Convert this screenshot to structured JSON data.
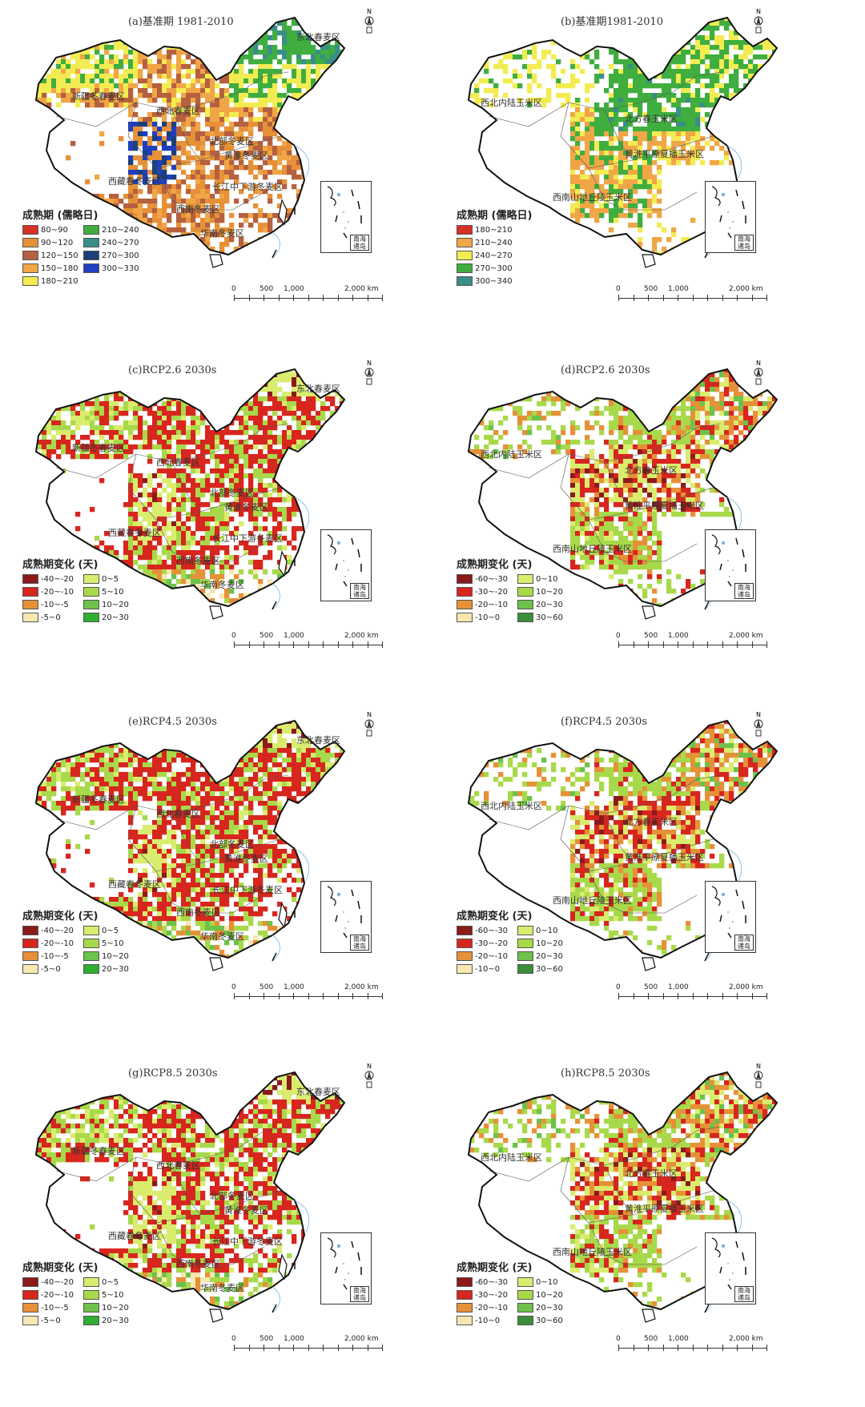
{
  "scale_labels": [
    "0",
    "500",
    "1,000",
    "2,000 km"
  ],
  "inset_label": "南海诸岛",
  "panels": [
    {
      "title": "(a)基准期 1981-2010",
      "legend_title": "成熟期 (儒略日)",
      "legend": [
        {
          "label": "80~90",
          "color": "#d73027"
        },
        {
          "label": "210~240",
          "color": "#3fae3f"
        },
        {
          "label": "90~120",
          "color": "#e69138"
        },
        {
          "label": "240~270",
          "color": "#3a8e88"
        },
        {
          "label": "120~150",
          "color": "#b5603e"
        },
        {
          "label": "270~300",
          "color": "#1a3f7a"
        },
        {
          "label": "150~180",
          "color": "#f0a646"
        },
        {
          "label": "300~330",
          "color": "#1f3fbf"
        },
        {
          "label": "180~210",
          "color": "#f2ec52"
        }
      ],
      "regions": [
        "东北春麦区",
        "新疆冬春麦区",
        "西北春麦区",
        "北部冬麦区",
        "黄淮冬麦区",
        "西藏春冬麦区",
        "长江中下游冬麦区",
        "西南冬麦区",
        "华南冬麦区"
      ]
    },
    {
      "title": "(b)基准期1981-2010",
      "legend_title": "成熟期 (儒略日)",
      "legend": [
        {
          "label": "180~210",
          "color": "#d73027"
        },
        {
          "label": "210~240",
          "color": "#f0a646"
        },
        {
          "label": "240~270",
          "color": "#f2ec52"
        },
        {
          "label": "270~300",
          "color": "#3fae3f"
        },
        {
          "label": "300~340",
          "color": "#3a8e88"
        }
      ],
      "regions": [
        "西北内陆玉米区",
        "北方春玉米区",
        "黄淮平原夏播玉米区",
        "西南山地丘陵玉米区"
      ]
    },
    {
      "title": "(c)RCP2.6 2030s",
      "legend_title": "成熟期变化 (天)",
      "legend": [
        {
          "label": "-40~-20",
          "color": "#8b1a1a"
        },
        {
          "label": "0~5",
          "color": "#d9ec6e"
        },
        {
          "label": "-20~-10",
          "color": "#d7261e"
        },
        {
          "label": "5~10",
          "color": "#a8d94a"
        },
        {
          "label": "-10~-5",
          "color": "#e69138"
        },
        {
          "label": "10~20",
          "color": "#6cc24a"
        },
        {
          "label": "-5~0",
          "color": "#f7e7b0"
        },
        {
          "label": "20~30",
          "color": "#2fae2f"
        }
      ],
      "regions": [
        "东北春麦区",
        "新疆冬春麦区",
        "西北春麦区",
        "北部冬麦区",
        "黄淮冬麦区",
        "西藏春冬麦区",
        "长江中下游冬麦区",
        "西南冬麦区",
        "华南冬麦区"
      ]
    },
    {
      "title": "(d)RCP2.6 2030s",
      "legend_title": "成熟期变化 (天)",
      "legend": [
        {
          "label": "-60~-30",
          "color": "#8b1a1a"
        },
        {
          "label": "0~10",
          "color": "#d9ec6e"
        },
        {
          "label": "-30~-20",
          "color": "#d7261e"
        },
        {
          "label": "10~20",
          "color": "#a8d94a"
        },
        {
          "label": "-20~-10",
          "color": "#e69138"
        },
        {
          "label": "20~30",
          "color": "#6cc24a"
        },
        {
          "label": "-10~0",
          "color": "#f7e7b0"
        },
        {
          "label": "30~60",
          "color": "#3a8e3a"
        }
      ],
      "regions": [
        "西北内陆玉米区",
        "北方春玉米区",
        "黄淮平原夏播玉米区",
        "西南山地丘陵玉米区"
      ]
    },
    {
      "title": "(e)RCP4.5 2030s",
      "legend_title": "成熟期变化 (天)",
      "legend": [
        {
          "label": "-40~-20",
          "color": "#8b1a1a"
        },
        {
          "label": "0~5",
          "color": "#d9ec6e"
        },
        {
          "label": "-20~-10",
          "color": "#d7261e"
        },
        {
          "label": "5~10",
          "color": "#a8d94a"
        },
        {
          "label": "-10~-5",
          "color": "#e69138"
        },
        {
          "label": "10~20",
          "color": "#6cc24a"
        },
        {
          "label": "-5~0",
          "color": "#f7e7b0"
        },
        {
          "label": "20~30",
          "color": "#2fae2f"
        }
      ],
      "regions": [
        "东北春麦区",
        "新疆冬春麦区",
        "西北春麦区",
        "北部冬麦区",
        "黄淮冬麦区",
        "西藏春冬麦区",
        "长江中下游冬麦区",
        "西南冬麦区",
        "华南冬麦区"
      ]
    },
    {
      "title": "(f)RCP4.5 2030s",
      "legend_title": "成熟期变化 (天)",
      "legend": [
        {
          "label": "-60~-30",
          "color": "#8b1a1a"
        },
        {
          "label": "0~10",
          "color": "#d9ec6e"
        },
        {
          "label": "-30~-20",
          "color": "#d7261e"
        },
        {
          "label": "10~20",
          "color": "#a8d94a"
        },
        {
          "label": "-20~-10",
          "color": "#e69138"
        },
        {
          "label": "20~30",
          "color": "#6cc24a"
        },
        {
          "label": "-10~0",
          "color": "#f7e7b0"
        },
        {
          "label": "30~60",
          "color": "#3a8e3a"
        }
      ],
      "regions": [
        "西北内陆玉米区",
        "北方春玉米区",
        "黄淮平原夏播玉米区",
        "西南山地丘陵玉米区"
      ]
    },
    {
      "title": "(g)RCP8.5 2030s",
      "legend_title": "成熟期变化 (天)",
      "legend": [
        {
          "label": "-40~-20",
          "color": "#8b1a1a"
        },
        {
          "label": "0~5",
          "color": "#d9ec6e"
        },
        {
          "label": "-20~-10",
          "color": "#d7261e"
        },
        {
          "label": "5~10",
          "color": "#a8d94a"
        },
        {
          "label": "-10~-5",
          "color": "#e69138"
        },
        {
          "label": "10~20",
          "color": "#6cc24a"
        },
        {
          "label": "-5~0",
          "color": "#f7e7b0"
        },
        {
          "label": "20~30",
          "color": "#2fae2f"
        }
      ],
      "regions": [
        "东北春麦区",
        "新疆冬春麦区",
        "西北春麦区",
        "北部冬麦区",
        "黄淮冬麦区",
        "西藏春冬麦区",
        "长江中下游冬麦区",
        "西南冬麦区",
        "华南冬麦区"
      ]
    },
    {
      "title": "(h)RCP8.5 2030s",
      "legend_title": "成熟期变化 (天)",
      "legend": [
        {
          "label": "-60~-30",
          "color": "#8b1a1a"
        },
        {
          "label": "0~10",
          "color": "#d9ec6e"
        },
        {
          "label": "-30~-20",
          "color": "#d7261e"
        },
        {
          "label": "10~20",
          "color": "#a8d94a"
        },
        {
          "label": "-20~-10",
          "color": "#e69138"
        },
        {
          "label": "20~30",
          "color": "#6cc24a"
        },
        {
          "label": "-10~0",
          "color": "#f7e7b0"
        },
        {
          "label": "30~60",
          "color": "#3a8e3a"
        }
      ],
      "regions": [
        "西北内陆玉米区",
        "北方春玉米区",
        "黄淮平原夏播玉米区",
        "西南山地丘陵玉米区"
      ]
    }
  ]
}
